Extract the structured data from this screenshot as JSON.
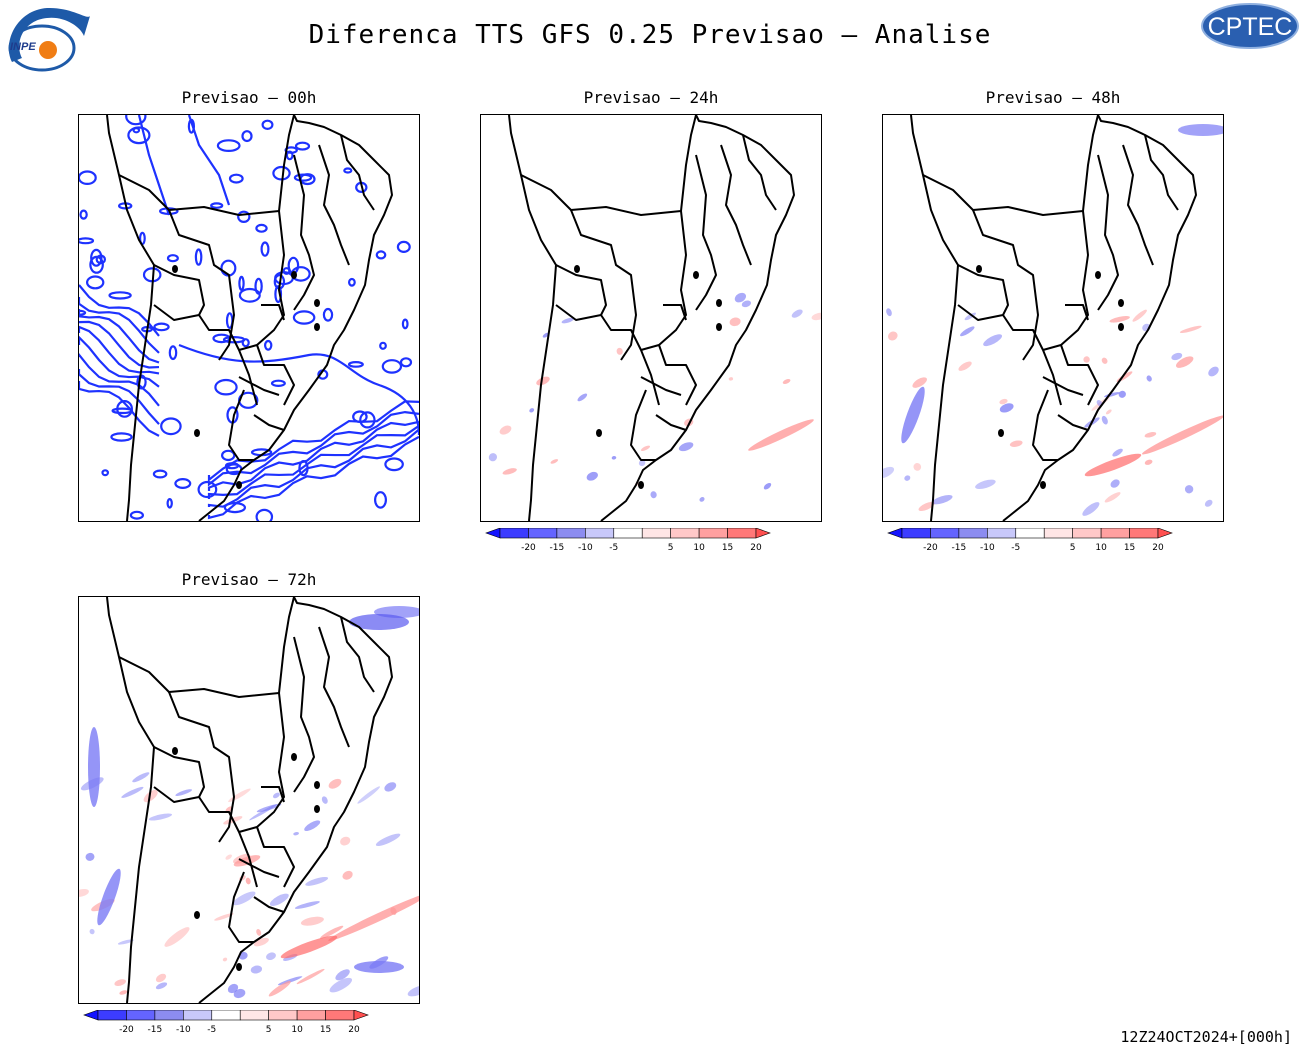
{
  "header": {
    "title": "Diferenca TTS GFS 0.25 Previsao — Analise",
    "logo_left_text": "INPE",
    "logo_right_text": "CPTEC"
  },
  "panels": [
    {
      "title": "Previsao — 00h",
      "style": "contour"
    },
    {
      "title": "Previsao — 24h",
      "style": "shaded"
    },
    {
      "title": "Previsao — 48h",
      "style": "shaded"
    },
    {
      "title": "Previsao — 72h",
      "style": "shaded"
    }
  ],
  "colorbar": {
    "labels": [
      "-20",
      "-15",
      "-10",
      "-5",
      "5",
      "10",
      "15",
      "20"
    ],
    "colors": [
      "#1414ff",
      "#3c3cff",
      "#6464ff",
      "#8c8cf0",
      "#c8c8fa",
      "#ffffff",
      "#ffe6e6",
      "#ffc8c8",
      "#ffa0a0",
      "#ff7878",
      "#ff5050"
    ]
  },
  "footer": {
    "timestamp": "12Z24OCT2024+[000h]"
  },
  "colors": {
    "contour": "#1e32ff",
    "negative": "#7a7af5",
    "positive": "#ff9a9a",
    "land_line": "#000000"
  }
}
